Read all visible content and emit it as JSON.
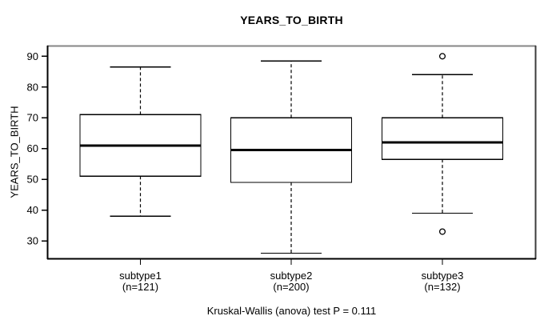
{
  "chart_data": {
    "type": "boxplot",
    "title": "YEARS_TO_BIRTH",
    "ylabel": "YEARS_TO_BIRTH",
    "caption": "Kruskal-Wallis (anova) test P = 0.111",
    "ylim": [
      24.3,
      93.2
    ],
    "yticks": [
      30,
      40,
      50,
      60,
      70,
      80,
      90
    ],
    "grid": false,
    "legend": "none",
    "groups": [
      {
        "label": "subtype1",
        "n_label": "(n=121)",
        "whisker_low": 38,
        "q1": 51,
        "median": 61,
        "q3": 71,
        "whisker_high": 86.5,
        "outliers": []
      },
      {
        "label": "subtype2",
        "n_label": "(n=200)",
        "whisker_low": 26,
        "q1": 49,
        "median": 59.5,
        "q3": 70,
        "whisker_high": 88.5,
        "outliers": []
      },
      {
        "label": "subtype3",
        "n_label": "(n=132)",
        "whisker_low": 39,
        "q1": 56.5,
        "median": 62,
        "q3": 70,
        "whisker_high": 84,
        "outliers": [
          33,
          90
        ]
      }
    ],
    "colors": {
      "stroke": "#000000",
      "fill": "#ffffff",
      "border_top": "#858585",
      "border_right": "#3d3d3d",
      "border_bottom": "#000000",
      "border_left": "#000000",
      "text": "#000000",
      "background": "#ffffff"
    }
  }
}
